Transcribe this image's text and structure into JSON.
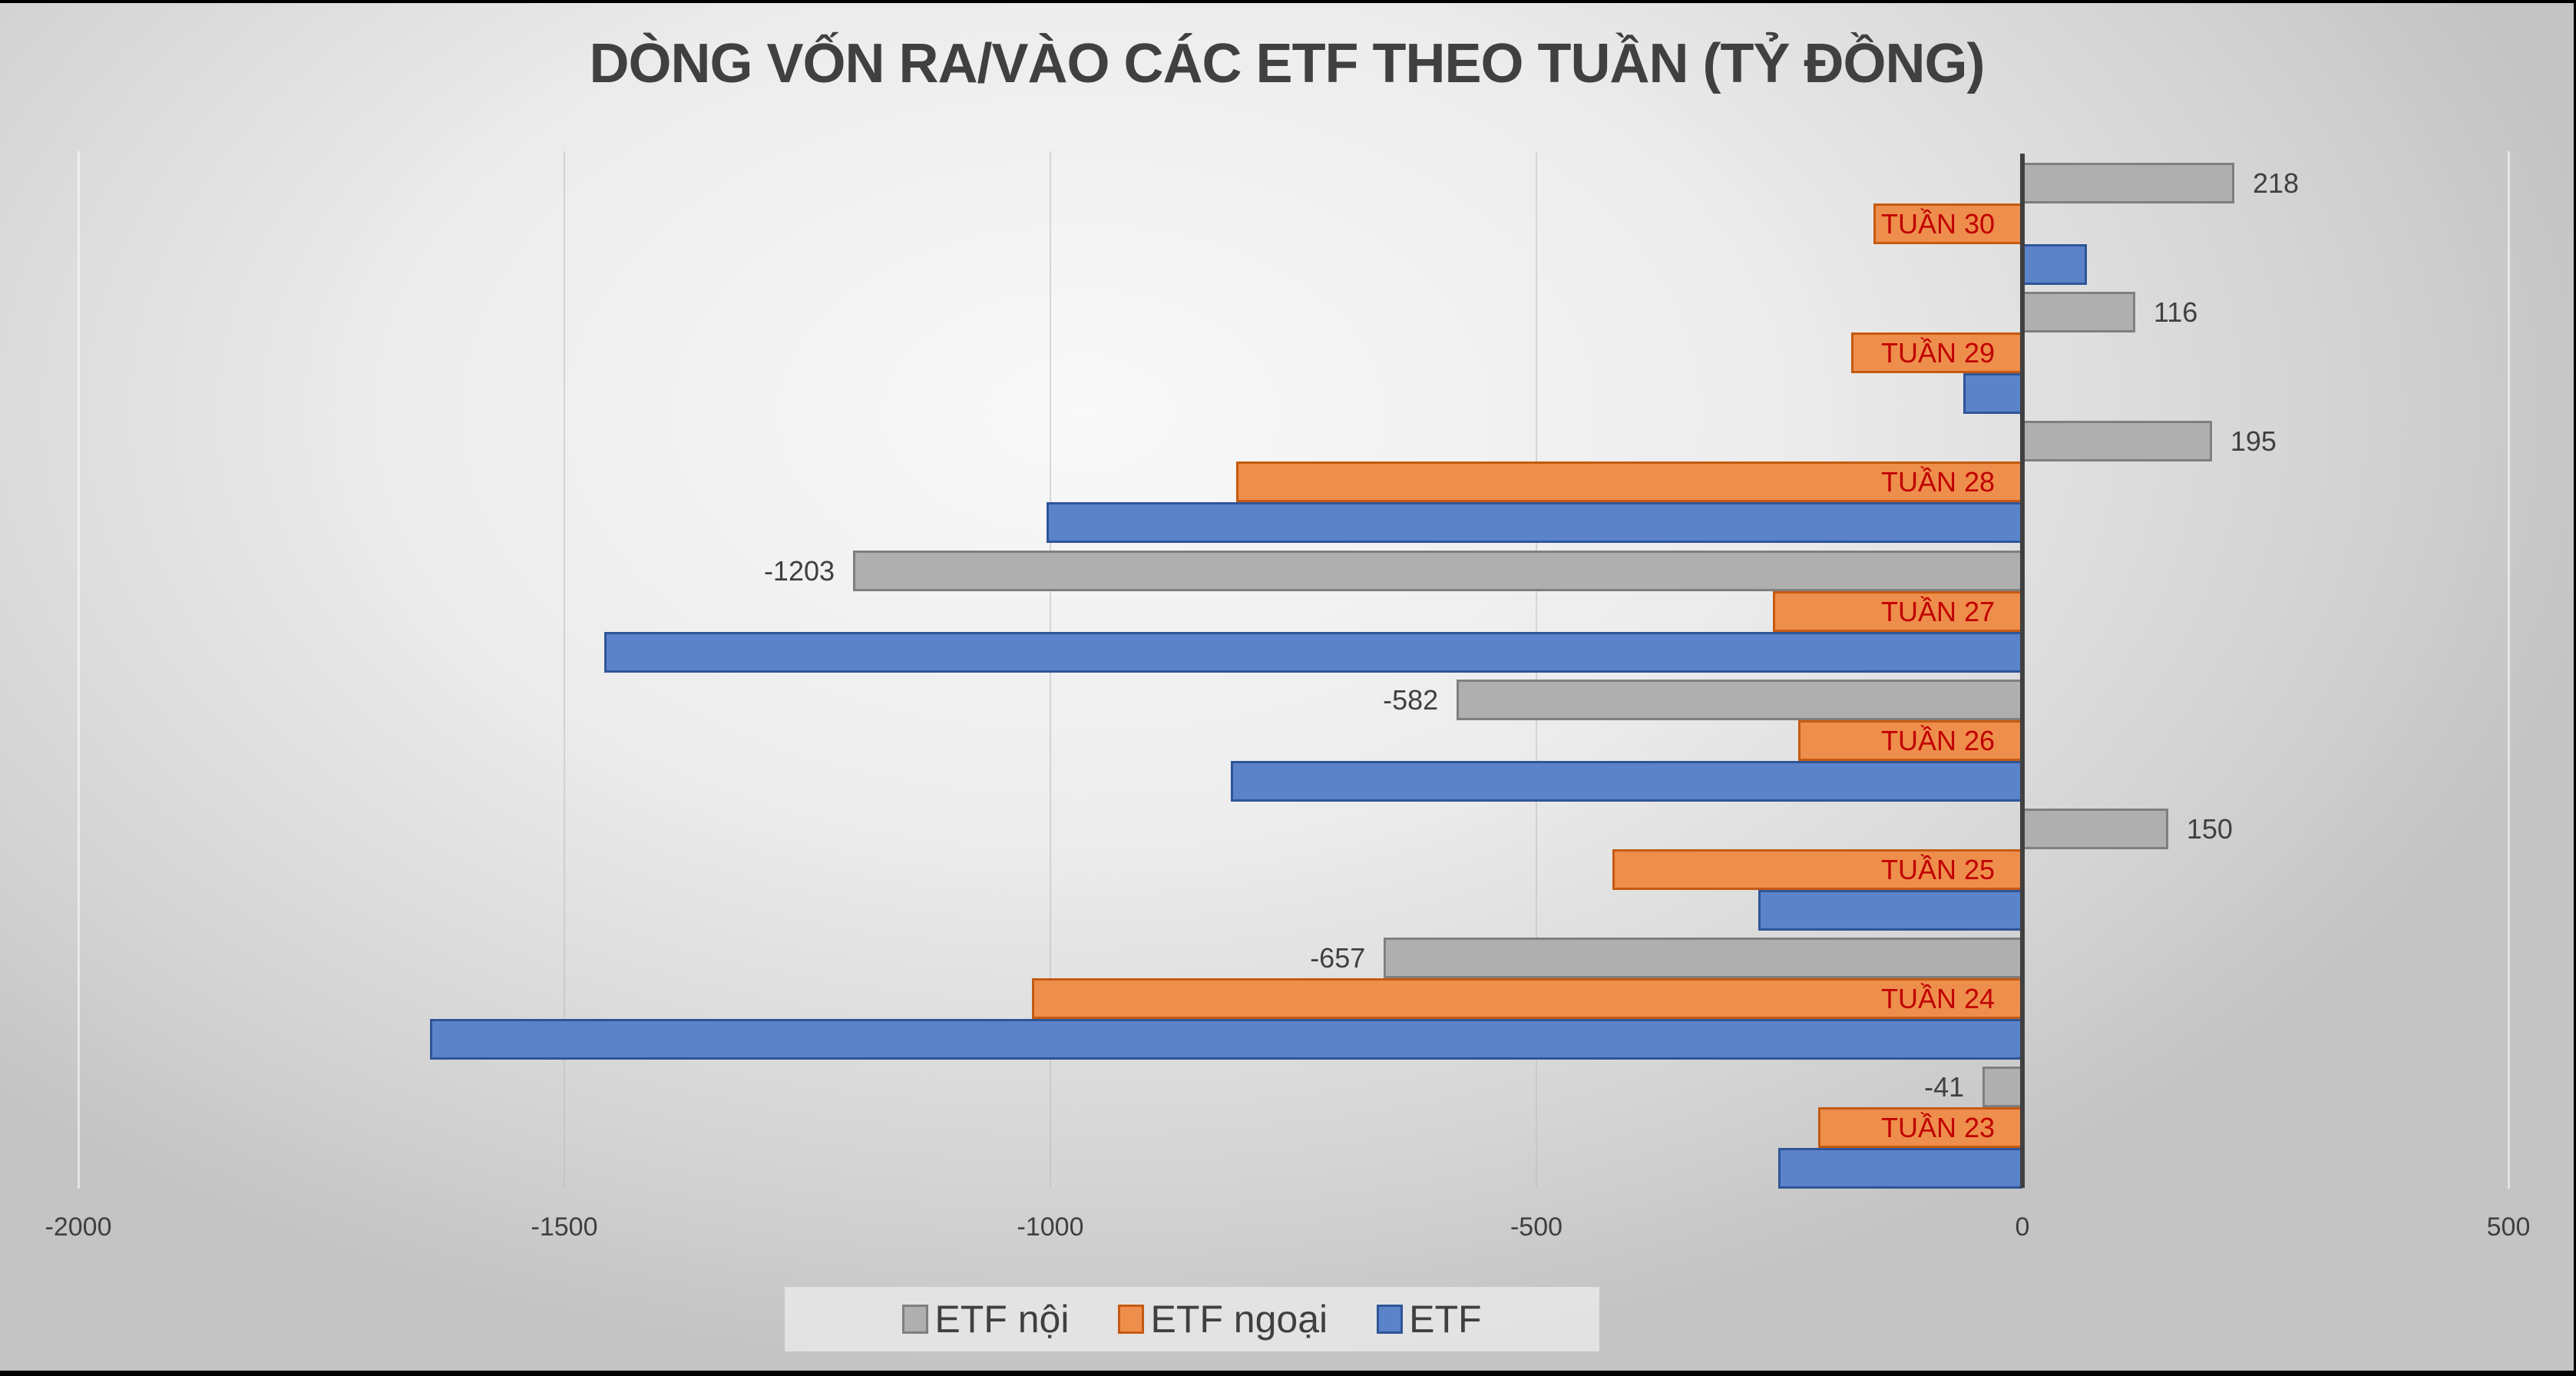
{
  "chart_data": {
    "type": "bar",
    "orientation": "horizontal",
    "title": "DÒNG VỐN RA/VÀO CÁC ETF THEO TUẦN (TỶ ĐỒNG)",
    "xlabel": "",
    "ylabel": "",
    "xlim": [
      -2000,
      500
    ],
    "x_ticks": [
      -2000,
      -1500,
      -1000,
      -500,
      0,
      500
    ],
    "x_tick_labels": [
      "-2000",
      "-1500",
      "-1000",
      "-500",
      "0",
      "500"
    ],
    "grid": true,
    "legend_position": "bottom",
    "categories": [
      "TUẦN 30",
      "TUẦN 29",
      "TUẦN 28",
      "TUẦN 27",
      "TUẦN 26",
      "TUẦN 25",
      "TUẦN 24",
      "TUẦN 23"
    ],
    "series": [
      {
        "name": "ETF nội",
        "color": "#AFAFAF",
        "border": "#7F7F7F",
        "values": [
          218,
          116,
          195,
          -1203,
          -582,
          150,
          -657,
          -41
        ],
        "data_labels": [
          "218",
          "116",
          "195",
          "-1203",
          "-582",
          "150",
          "-657",
          "-41"
        ]
      },
      {
        "name": "ETF ngoại",
        "color": "#EE8E4C",
        "border": "#C55A11",
        "values": [
          -153,
          -176,
          -809,
          -257,
          -231,
          -422,
          -1019,
          -210
        ]
      },
      {
        "name": "ETF",
        "color": "#5B83C9",
        "border": "#2F5597",
        "values": [
          66,
          -61,
          -1004,
          -1459,
          -814,
          -272,
          -1638,
          -251
        ]
      }
    ],
    "category_label_color": "#C00000"
  },
  "legend": {
    "items": [
      {
        "label": "ETF nội",
        "color": "#AFAFAF",
        "border": "#7F7F7F"
      },
      {
        "label": "ETF ngoại",
        "color": "#EE8E4C",
        "border": "#C55A11"
      },
      {
        "label": "ETF",
        "color": "#5B83C9",
        "border": "#2F5597"
      }
    ]
  }
}
